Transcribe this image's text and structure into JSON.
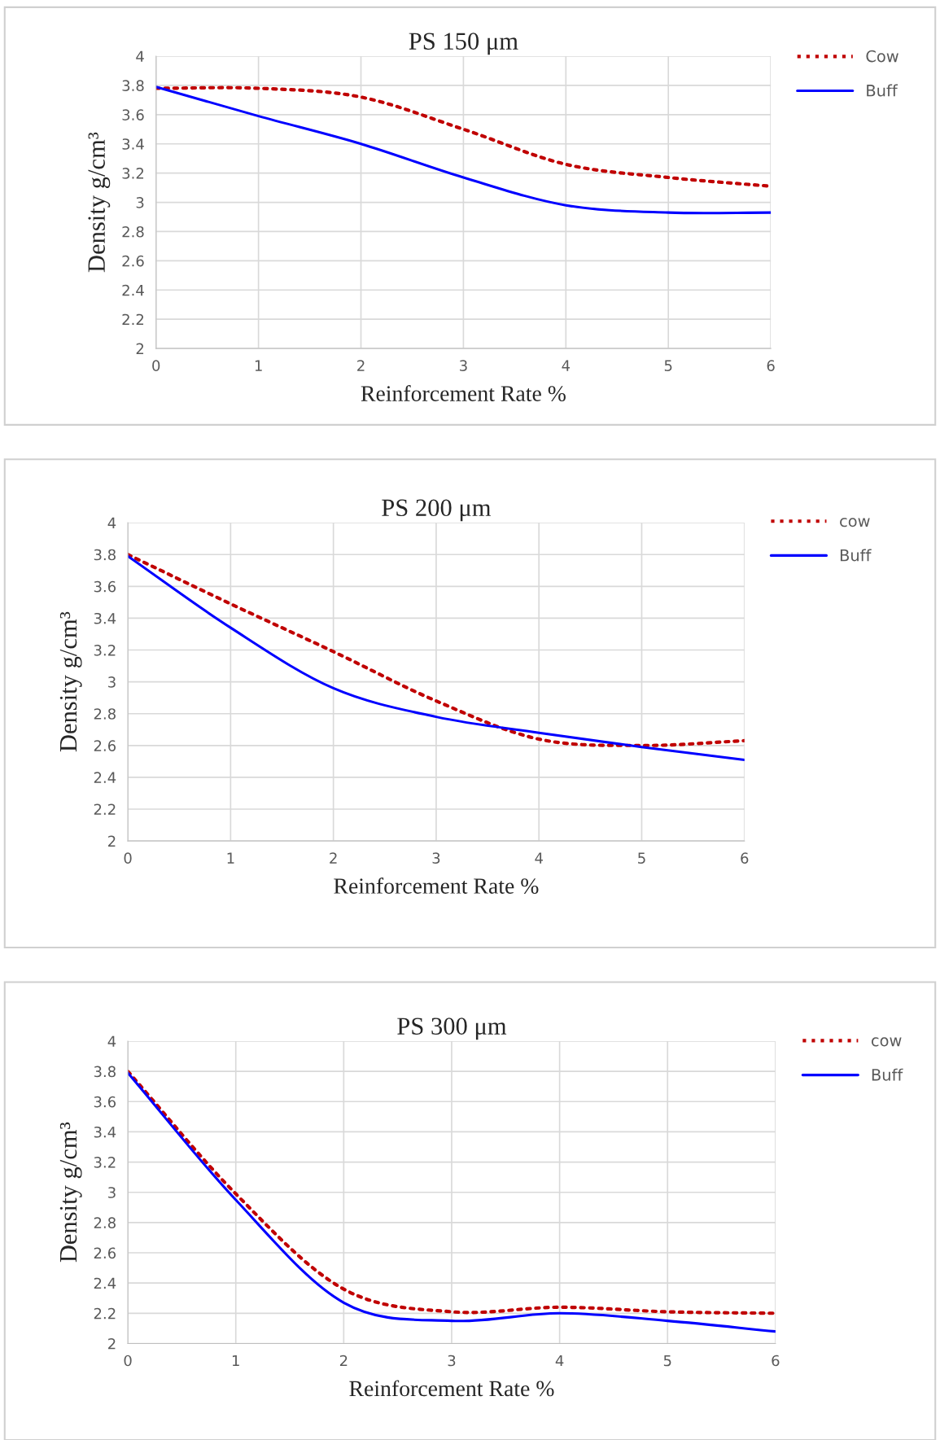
{
  "chart_data": [
    {
      "type": "line",
      "title": "PS 150 μm",
      "xlabel": "Reinforcement Rate %",
      "ylabel": "Density g/cm³",
      "x": [
        0,
        1,
        2,
        3,
        4,
        5,
        6
      ],
      "xlim": [
        0,
        6
      ],
      "xticks": [
        0,
        1,
        2,
        3,
        4,
        5,
        6
      ],
      "ylim": [
        2,
        4
      ],
      "yticks": [
        2,
        2.2,
        2.4,
        2.6,
        2.8,
        3,
        3.2,
        3.4,
        3.6,
        3.8,
        4
      ],
      "grid": true,
      "legend": "top right",
      "series": [
        {
          "name": "Cow",
          "color": "#c00000",
          "line_style": "dotted",
          "values": [
            3.78,
            3.78,
            3.72,
            3.5,
            3.26,
            3.17,
            3.11
          ]
        },
        {
          "name": "Buff",
          "color": "#0000ff",
          "line_style": "solid",
          "values": [
            3.79,
            3.59,
            3.4,
            3.17,
            2.98,
            2.93,
            2.93
          ]
        }
      ]
    },
    {
      "type": "line",
      "title": "PS 200 μm",
      "xlabel": "Reinforcement Rate %",
      "ylabel": "Density g/cm³",
      "x": [
        0,
        1,
        2,
        3,
        4,
        5,
        6
      ],
      "xlim": [
        0,
        6
      ],
      "xticks": [
        0,
        1,
        2,
        3,
        4,
        5,
        6
      ],
      "ylim": [
        2,
        4
      ],
      "yticks": [
        2,
        2.2,
        2.4,
        2.6,
        2.8,
        3,
        3.2,
        3.4,
        3.6,
        3.8,
        4
      ],
      "grid": true,
      "legend": "top right",
      "series": [
        {
          "name": "cow",
          "color": "#c00000",
          "line_style": "dotted",
          "values": [
            3.8,
            3.49,
            3.19,
            2.88,
            2.64,
            2.6,
            2.63
          ]
        },
        {
          "name": "Buff",
          "color": "#0000ff",
          "line_style": "solid",
          "values": [
            3.79,
            3.34,
            2.96,
            2.78,
            2.68,
            2.59,
            2.51
          ]
        }
      ]
    },
    {
      "type": "line",
      "title": "PS 300 μm",
      "xlabel": "Reinforcement Rate %",
      "ylabel": "Density g/cm³",
      "x": [
        0,
        1,
        2,
        3,
        4,
        5,
        6
      ],
      "xlim": [
        0,
        6
      ],
      "xticks": [
        0,
        1,
        2,
        3,
        4,
        5,
        6
      ],
      "ylim": [
        2,
        4
      ],
      "yticks": [
        2,
        2.2,
        2.4,
        2.6,
        2.8,
        3,
        3.2,
        3.4,
        3.6,
        3.8,
        4
      ],
      "grid": true,
      "legend": "top right",
      "series": [
        {
          "name": "cow",
          "color": "#c00000",
          "line_style": "dotted",
          "values": [
            3.8,
            2.99,
            2.36,
            2.21,
            2.24,
            2.21,
            2.2
          ]
        },
        {
          "name": "Buff",
          "color": "#0000ff",
          "line_style": "solid",
          "values": [
            3.79,
            2.95,
            2.27,
            2.15,
            2.2,
            2.15,
            2.08
          ]
        }
      ]
    }
  ]
}
